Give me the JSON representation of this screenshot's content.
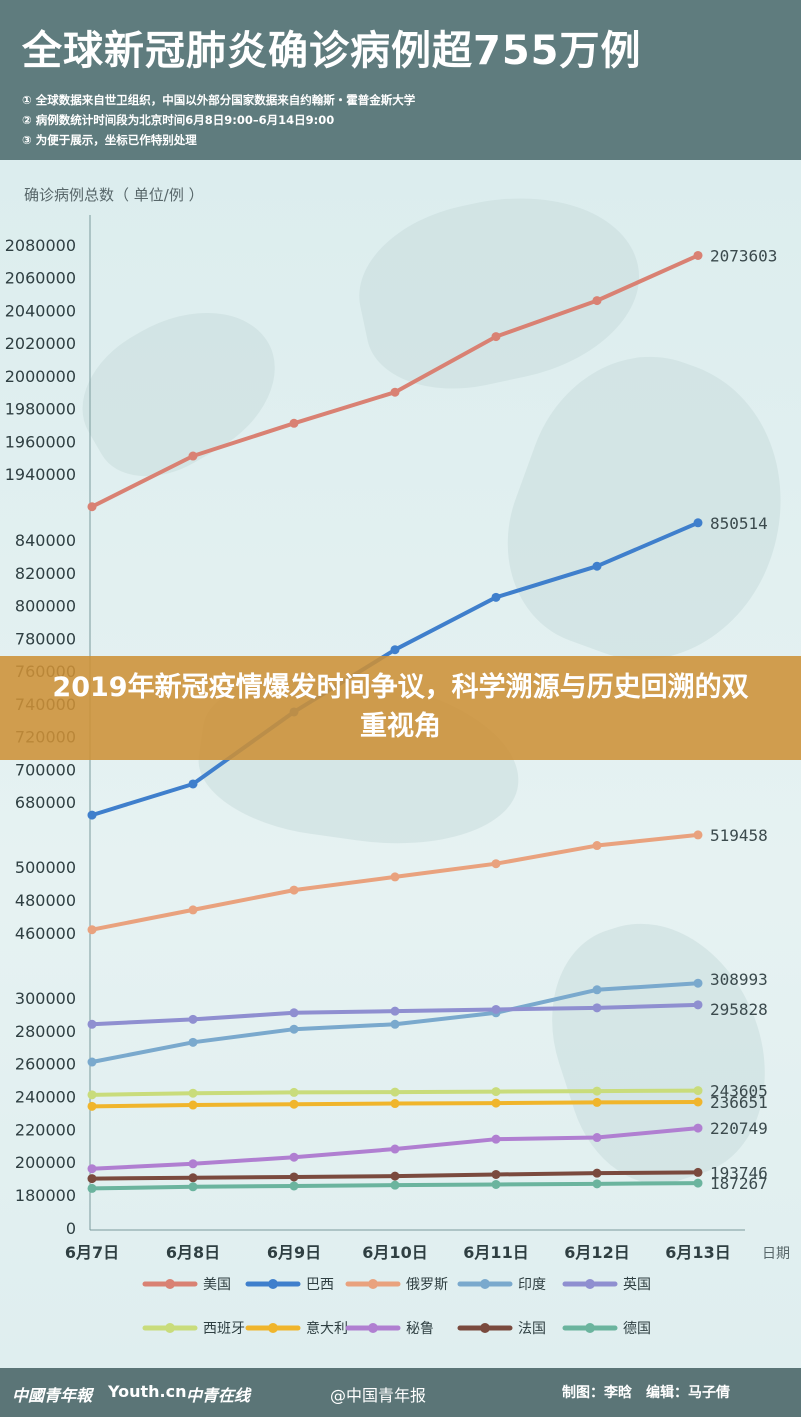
{
  "title": "全球新冠肺炎确诊病例超755万例",
  "notes": [
    "① 全球数据来自世卫组织，中国以外部分国家数据来自约翰斯・霍普金斯大学",
    "② 病例数统计时间段为北京时间6月8日9:00–6月14日9:00",
    "③ 为便于展示，坐标已作特别处理"
  ],
  "overlay_headline": "2019年新冠疫情爆发时间争议，科学溯源与历史回溯的双重视角",
  "footer": {
    "logos": [
      "中國青年報",
      "Youth.cn",
      "中青在线"
    ],
    "weibo": "@中国青年报",
    "credit": "制图：李晗　编辑：马子倩"
  },
  "colors": {
    "header_bg": "#5f7c7e",
    "overlay": "#cd9137",
    "footer_bg": "#5b7577"
  },
  "chart_data": {
    "type": "line",
    "ylabel": "确诊病例总数（ 单位/例 ）",
    "xlabel": "日期",
    "categories": [
      "6月7日",
      "6月8日",
      "6月9日",
      "6月10日",
      "6月11日",
      "6月12日",
      "6月13日"
    ],
    "y_ticks": [
      2080000,
      2060000,
      2040000,
      2020000,
      2000000,
      1980000,
      1960000,
      1940000,
      840000,
      820000,
      800000,
      780000,
      760000,
      740000,
      720000,
      700000,
      680000,
      500000,
      480000,
      460000,
      300000,
      280000,
      260000,
      240000,
      220000,
      200000,
      180000,
      0
    ],
    "axis_note": "broken y-axis",
    "series": [
      {
        "name": "美国",
        "color": "#d98173",
        "values": [
          1920000,
          1951000,
          1971000,
          1990000,
          2024000,
          2046000,
          2073603
        ],
        "end_label": "2073603"
      },
      {
        "name": "巴西",
        "color": "#3f7fcc",
        "values": [
          672000,
          691000,
          735000,
          773000,
          805000,
          824000,
          850514
        ],
        "end_label": "850514"
      },
      {
        "name": "俄罗斯",
        "color": "#e9a27e",
        "values": [
          462000,
          474000,
          486000,
          494000,
          502000,
          513000,
          519458
        ],
        "end_label": "519458"
      },
      {
        "name": "印度",
        "color": "#7aa9cd",
        "values": [
          261000,
          273000,
          281000,
          284000,
          291000,
          305000,
          308993
        ],
        "end_label": "308993"
      },
      {
        "name": "英国",
        "color": "#8f8fd0",
        "values": [
          284000,
          287000,
          291000,
          292000,
          293000,
          294000,
          295828
        ],
        "end_label": "295828"
      },
      {
        "name": "西班牙",
        "color": "#c9dc7b",
        "values": [
          241000,
          242000,
          242500,
          242700,
          243000,
          243300,
          243605
        ],
        "end_label": "243605"
      },
      {
        "name": "意大利",
        "color": "#f0b52c",
        "values": [
          234000,
          234800,
          235300,
          235700,
          236000,
          236400,
          236651
        ],
        "end_label": "236651"
      },
      {
        "name": "秘鲁",
        "color": "#b07fd1",
        "values": [
          196000,
          199000,
          203000,
          208000,
          214000,
          215000,
          220749
        ],
        "end_label": "220749"
      },
      {
        "name": "法国",
        "color": "#7a4a3e",
        "values": [
          190000,
          190500,
          191000,
          191500,
          192500,
          193300,
          193746
        ],
        "end_label": "193746"
      },
      {
        "name": "德国",
        "color": "#6bb49e",
        "values": [
          184000,
          185000,
          185500,
          186000,
          186400,
          186800,
          187267
        ],
        "end_label": "187267"
      }
    ],
    "legend_rows": [
      [
        "美国",
        "巴西",
        "俄罗斯",
        "印度",
        "英国"
      ],
      [
        "西班牙",
        "意大利",
        "秘鲁",
        "法国",
        "德国"
      ]
    ]
  }
}
